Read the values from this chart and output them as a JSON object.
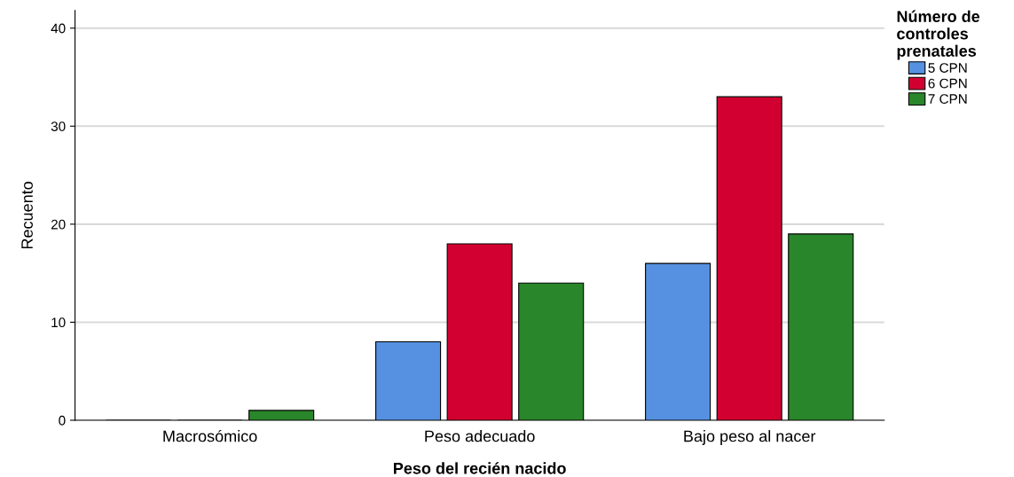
{
  "chart_data": {
    "type": "bar",
    "xlabel": "Peso del recién nacido",
    "ylabel": "Recuento",
    "legend_title": "Número de\ncontroles\nprenatales",
    "categories": [
      "Macrosómico",
      "Peso adecuado",
      "Bajo peso al nacer"
    ],
    "series": [
      {
        "name": "5 CPN",
        "color": "#5591e0",
        "values": [
          0,
          8,
          16
        ]
      },
      {
        "name": "6 CPN",
        "color": "#d20030",
        "values": [
          0,
          18,
          33
        ]
      },
      {
        "name": "7 CPN",
        "color": "#2a862a",
        "values": [
          1,
          14,
          19
        ]
      }
    ],
    "ylim": [
      0,
      41.8
    ],
    "yticks": [
      0,
      10,
      20,
      30,
      40
    ],
    "grid": "y",
    "legend": "top right"
  }
}
